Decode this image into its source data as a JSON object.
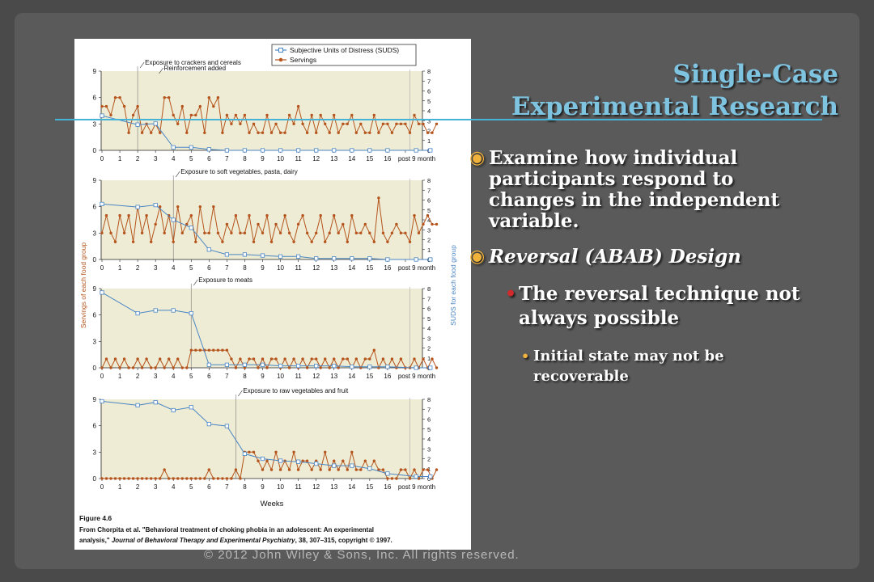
{
  "slide": {
    "title_line1": "Single-Case",
    "title_line2": "Experimental Research",
    "bullets": [
      "Examine how individual participants respond to changes in the independent variable.",
      "Reversal (ABAB) Design",
      "The reversal technique not always possible",
      "Initial state may not be recoverable"
    ],
    "footer": "© 2012 John Wiley & Sons, Inc. All rights reserved.",
    "marker_glyphs": [
      "◉",
      "◉",
      "•",
      "•"
    ]
  },
  "figure": {
    "label": "Figure 4.6",
    "caption_line1": "From Chorpita et al. \"Behavioral treatment of choking phobia in an adolescent: An experimental",
    "caption_line2_pre": "analysis,\" ",
    "caption_line2_italic": "Journal of Behavioral Therapy and Experimental Psychiatry",
    "caption_line2_post": ", 38, 307–315, copyright © 1997."
  },
  "chart_data": {
    "type": "line",
    "x_ticks": [
      "0",
      "1",
      "2",
      "3",
      "4",
      "5",
      "6",
      "7",
      "8",
      "9",
      "10",
      "11",
      "12",
      "13",
      "14",
      "15",
      "16",
      "post 9 month"
    ],
    "xlabel": "Weeks",
    "ylabel_left": "Servings of each food group",
    "ylabel_right": "SUDS for each food group",
    "y_left_ticks": [
      "0",
      "3",
      "6",
      "9"
    ],
    "y_right_ticks": [
      "0",
      "1",
      "2",
      "3",
      "4",
      "5",
      "6",
      "7",
      "8"
    ],
    "ylim_left": [
      0,
      9
    ],
    "ylim_right": [
      0,
      8
    ],
    "legend": [
      {
        "name": "Subjective Units of Distress (SUDS)",
        "color": "#2e6fb0",
        "marker": "square"
      },
      {
        "name": "Servings",
        "color": "#b5541c",
        "marker": "circle"
      }
    ],
    "legend_position": "top-right",
    "colors": {
      "suds": "#4a86c4",
      "servings": "#b5541c",
      "panel_fill": "#eeecd4"
    },
    "panels": [
      {
        "annotations": [
          "Exposure to crackers and cereals",
          "Reinforcement added"
        ],
        "phase_week": 2,
        "suds": {
          "x": [
            0,
            2,
            3,
            4,
            5,
            6,
            7,
            8,
            9,
            10,
            11,
            12,
            13,
            14,
            15,
            16,
            17.6,
            18.4
          ],
          "y": [
            3.5,
            2.6,
            2.7,
            0.3,
            0.3,
            0.1,
            0,
            0,
            0,
            0,
            0,
            0,
            0,
            0,
            0,
            0,
            0,
            0
          ]
        },
        "servings": {
          "x": [
            0,
            0.25,
            0.5,
            0.75,
            1,
            1.25,
            1.5,
            1.75,
            2,
            2.25,
            2.5,
            2.75,
            3,
            3.25,
            3.5,
            3.75,
            4,
            4.25,
            4.5,
            4.75,
            5,
            5.25,
            5.5,
            5.75,
            6,
            6.25,
            6.5,
            6.75,
            7,
            7.25,
            7.5,
            7.75,
            8,
            8.25,
            8.5,
            8.75,
            9,
            9.25,
            9.5,
            9.75,
            10,
            10.25,
            10.5,
            10.75,
            11,
            11.25,
            11.5,
            11.75,
            12,
            12.25,
            12.5,
            12.75,
            13,
            13.25,
            13.5,
            13.75,
            14,
            14.25,
            14.5,
            14.75,
            15,
            15.25,
            15.5,
            15.75,
            16,
            16.25,
            16.5,
            16.75,
            17,
            17.25,
            17.5,
            17.75,
            18,
            18.25,
            18.5,
            18.75
          ],
          "y": [
            5,
            5,
            4,
            6,
            6,
            5,
            2,
            4,
            5,
            2,
            3,
            2,
            3,
            2,
            6,
            6,
            4,
            3,
            5,
            2,
            4,
            4,
            5,
            2,
            6,
            5,
            6,
            2,
            4,
            3,
            4,
            3,
            4,
            2,
            3,
            2,
            2,
            4,
            2,
            3,
            2,
            2,
            4,
            3,
            5,
            3,
            2,
            4,
            2,
            4,
            3,
            2,
            4,
            2,
            3,
            3,
            4,
            2,
            3,
            2,
            2,
            4,
            2,
            3,
            3,
            2,
            3,
            3,
            3,
            2,
            4,
            3,
            3,
            2,
            2,
            3
          ]
        }
      },
      {
        "annotations": [
          "Exposure to soft vegetables, pasta, dairy"
        ],
        "phase_week": 4,
        "suds": {
          "x": [
            0,
            2,
            3,
            4,
            5,
            6,
            7,
            8,
            9,
            10,
            11,
            12,
            13,
            14,
            15,
            16,
            17.6,
            18.4
          ],
          "y": [
            5.6,
            5.3,
            5.5,
            4.0,
            3.2,
            1.0,
            0.5,
            0.5,
            0.4,
            0.3,
            0.3,
            0.1,
            0.1,
            0.1,
            0.1,
            0,
            0,
            0
          ]
        },
        "servings": {
          "x": [
            0,
            0.25,
            0.5,
            0.75,
            1,
            1.25,
            1.5,
            1.75,
            2,
            2.25,
            2.5,
            2.75,
            3,
            3.25,
            3.5,
            3.75,
            4,
            4.25,
            4.5,
            4.75,
            5,
            5.25,
            5.5,
            5.75,
            6,
            6.25,
            6.5,
            6.75,
            7,
            7.25,
            7.5,
            7.75,
            8,
            8.25,
            8.5,
            8.75,
            9,
            9.25,
            9.5,
            9.75,
            10,
            10.25,
            10.5,
            10.75,
            11,
            11.25,
            11.5,
            11.75,
            12,
            12.25,
            12.5,
            12.75,
            13,
            13.25,
            13.5,
            13.75,
            14,
            14.25,
            14.5,
            14.75,
            15,
            15.25,
            15.5,
            15.75,
            16,
            16.25,
            16.5,
            16.75,
            17,
            17.25,
            17.5,
            17.75,
            18,
            18.25,
            18.5,
            18.75
          ],
          "y": [
            3,
            5,
            3,
            2,
            5,
            3,
            5,
            2,
            6,
            3,
            5,
            2,
            4,
            6,
            3,
            5,
            2,
            6,
            3,
            4,
            5,
            2,
            6,
            3,
            3,
            6,
            3,
            2,
            4,
            3,
            5,
            3,
            3,
            5,
            2,
            4,
            3,
            5,
            2,
            4,
            3,
            5,
            3,
            2,
            4,
            5,
            3,
            2,
            3,
            5,
            2,
            3,
            5,
            3,
            4,
            2,
            5,
            3,
            3,
            4,
            3,
            2,
            7,
            3,
            2,
            3,
            4,
            3,
            3,
            2,
            5,
            3,
            4,
            5,
            4,
            4
          ]
        }
      },
      {
        "annotations": [
          "Exposure to meats"
        ],
        "phase_week": 5,
        "suds": {
          "x": [
            0,
            2,
            3,
            4,
            5,
            6,
            7,
            8,
            9,
            10,
            11,
            12,
            13,
            14,
            15,
            16,
            17.6,
            18.4
          ],
          "y": [
            7.6,
            5.5,
            5.8,
            5.8,
            5.5,
            0.3,
            0.3,
            0.3,
            0.3,
            0.2,
            0.2,
            0.2,
            0.2,
            0.1,
            0.1,
            0.1,
            0,
            0
          ]
        },
        "servings": {
          "x": [
            0,
            0.25,
            0.5,
            0.75,
            1,
            1.25,
            1.5,
            1.75,
            2,
            2.25,
            2.5,
            2.75,
            3,
            3.25,
            3.5,
            3.75,
            4,
            4.25,
            4.5,
            4.75,
            5,
            5.25,
            5.5,
            5.75,
            6,
            6.25,
            6.5,
            6.75,
            7,
            7.25,
            7.5,
            7.75,
            8,
            8.25,
            8.5,
            8.75,
            9,
            9.25,
            9.5,
            9.75,
            10,
            10.25,
            10.5,
            10.75,
            11,
            11.25,
            11.5,
            11.75,
            12,
            12.25,
            12.5,
            12.75,
            13,
            13.25,
            13.5,
            13.75,
            14,
            14.25,
            14.5,
            14.75,
            15,
            15.25,
            15.5,
            15.75,
            16,
            16.25,
            16.5,
            16.75,
            17,
            17.25,
            17.5,
            17.75,
            18,
            18.25,
            18.5,
            18.75
          ],
          "y": [
            0,
            1,
            0,
            1,
            0,
            1,
            0,
            0,
            1,
            0,
            1,
            0,
            0,
            1,
            0,
            1,
            0,
            1,
            0,
            0,
            2,
            2,
            2,
            2,
            2,
            2,
            2,
            2,
            2,
            1,
            0,
            1,
            0,
            1,
            1,
            0,
            1,
            0,
            1,
            1,
            0,
            1,
            0,
            1,
            0,
            1,
            0,
            1,
            1,
            0,
            1,
            0,
            1,
            0,
            1,
            1,
            0,
            1,
            0,
            1,
            1,
            2,
            0,
            1,
            0,
            1,
            0,
            1,
            0,
            0,
            1,
            0,
            1,
            0,
            1,
            0
          ]
        }
      },
      {
        "annotations": [
          "Exposure to raw vegetables and fruit"
        ],
        "phase_week": 7.5,
        "suds": {
          "x": [
            0,
            2,
            3,
            4,
            5,
            6,
            7,
            8,
            9,
            10,
            11,
            12,
            13,
            14,
            15,
            16,
            17.6,
            18.4
          ],
          "y": [
            7.8,
            7.4,
            7.7,
            6.9,
            7.2,
            5.5,
            5.3,
            2.5,
            2.0,
            1.8,
            1.7,
            1.5,
            1.3,
            1.3,
            1.0,
            0.5,
            0.2,
            0.2
          ]
        },
        "servings": {
          "x": [
            0,
            0.25,
            0.5,
            0.75,
            1,
            1.25,
            1.5,
            1.75,
            2,
            2.25,
            2.5,
            2.75,
            3,
            3.25,
            3.5,
            3.75,
            4,
            4.25,
            4.5,
            4.75,
            5,
            5.25,
            5.5,
            5.75,
            6,
            6.25,
            6.5,
            6.75,
            7,
            7.25,
            7.5,
            7.75,
            8,
            8.25,
            8.5,
            8.75,
            9,
            9.25,
            9.5,
            9.75,
            10,
            10.25,
            10.5,
            10.75,
            11,
            11.25,
            11.5,
            11.75,
            12,
            12.25,
            12.5,
            12.75,
            13,
            13.25,
            13.5,
            13.75,
            14,
            14.25,
            14.5,
            14.75,
            15,
            15.25,
            15.5,
            15.75,
            16,
            16.25,
            16.5,
            16.75,
            17,
            17.25,
            17.5,
            17.75,
            18,
            18.25,
            18.5,
            18.75
          ],
          "y": [
            0,
            0,
            0,
            0,
            0,
            0,
            0,
            0,
            0,
            0,
            0,
            0,
            0,
            0,
            1,
            0,
            0,
            0,
            0,
            0,
            0,
            0,
            0,
            0,
            1,
            0,
            0,
            0,
            0,
            0,
            1,
            0,
            3,
            3,
            3,
            2,
            1,
            2,
            1,
            3,
            1,
            2,
            1,
            3,
            1,
            2,
            2,
            1,
            2,
            1,
            3,
            1,
            2,
            1,
            2,
            1,
            3,
            1,
            1,
            2,
            1,
            2,
            1,
            1,
            0,
            0,
            0,
            1,
            1,
            0,
            1,
            0,
            1,
            1,
            0,
            1
          ]
        }
      }
    ]
  }
}
